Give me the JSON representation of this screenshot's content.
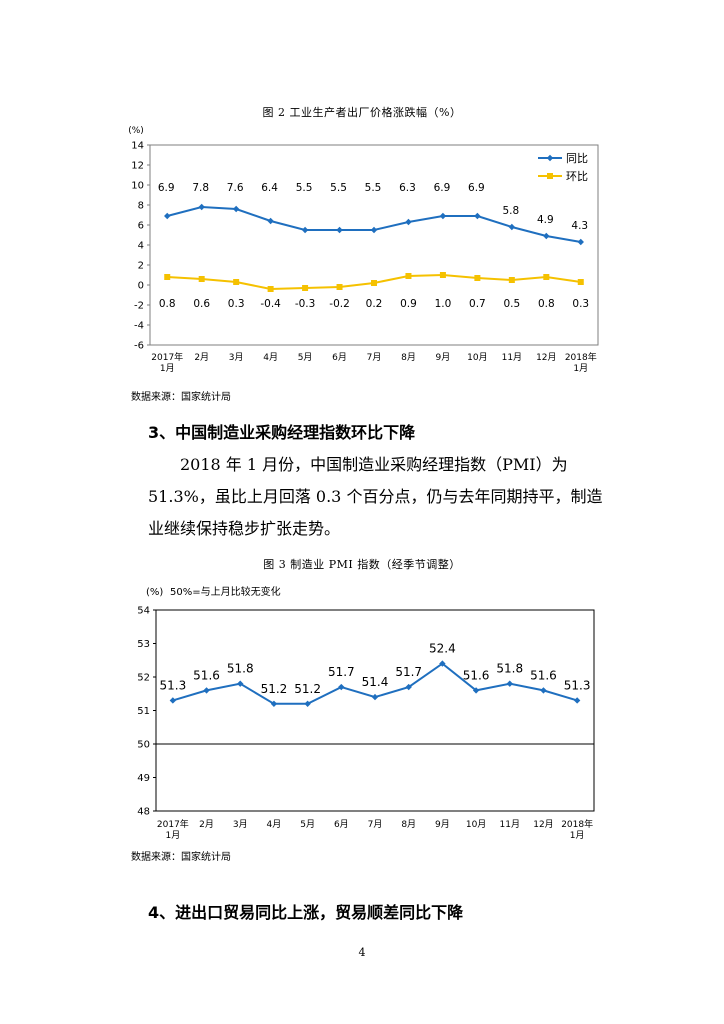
{
  "figure2": {
    "title": "图 2  工业生产者出厂价格涨跌幅（%）",
    "source": "数据来源：国家统计局",
    "chart_data": {
      "type": "line",
      "unit_label": "(%)",
      "categories": [
        "2017年\n1月",
        "2月",
        "3月",
        "4月",
        "5月",
        "6月",
        "7月",
        "8月",
        "9月",
        "10月",
        "11月",
        "12月",
        "2018年\n1月"
      ],
      "series": [
        {
          "name": "同比",
          "color": "#1f6fbf",
          "marker": "diamond",
          "values": [
            6.9,
            7.8,
            7.6,
            6.4,
            5.5,
            5.5,
            5.5,
            6.3,
            6.9,
            6.9,
            5.8,
            4.9,
            4.3
          ]
        },
        {
          "name": "环比",
          "color": "#f5c100",
          "marker": "square",
          "values": [
            0.8,
            0.6,
            0.3,
            -0.4,
            -0.3,
            -0.2,
            0.2,
            0.9,
            1.0,
            0.7,
            0.5,
            0.8,
            0.3
          ]
        }
      ],
      "ylim": [
        -6,
        14
      ],
      "yticks": [
        -6,
        -4,
        -2,
        0,
        2,
        4,
        6,
        8,
        10,
        12,
        14
      ],
      "legend": "top-right",
      "grid": false
    }
  },
  "section3": {
    "heading": "3、中国制造业采购经理指数环比下降",
    "paragraph": "2018 年 1 月份，中国制造业采购经理指数（PMI）为 51.3%，虽比上月回落 0.3 个百分点，仍与去年同期持平，制造业继续保持稳步扩张走势。"
  },
  "figure3": {
    "title": "图 3  制造业 PMI 指数（经季节调整）",
    "source": "数据来源：国家统计局",
    "chart_data": {
      "type": "line",
      "unit_label": "(%)",
      "note": "50%=与上月比较无变化",
      "categories": [
        "2017年\n1月",
        "2月",
        "3月",
        "4月",
        "5月",
        "6月",
        "7月",
        "8月",
        "9月",
        "10月",
        "11月",
        "12月",
        "2018年\n1月"
      ],
      "series": [
        {
          "color": "#1f6fbf",
          "marker": "diamond",
          "values": [
            51.3,
            51.6,
            51.8,
            51.2,
            51.2,
            51.7,
            51.4,
            51.7,
            52.4,
            51.6,
            51.8,
            51.6,
            51.3
          ]
        }
      ],
      "ylim": [
        48,
        54
      ],
      "yticks": [
        48,
        49,
        50,
        51,
        52,
        53,
        54
      ],
      "reference_line": 50,
      "grid": false
    }
  },
  "section4": {
    "heading": "4、进出口贸易同比上涨，贸易顺差同比下降"
  },
  "page_number": "4"
}
